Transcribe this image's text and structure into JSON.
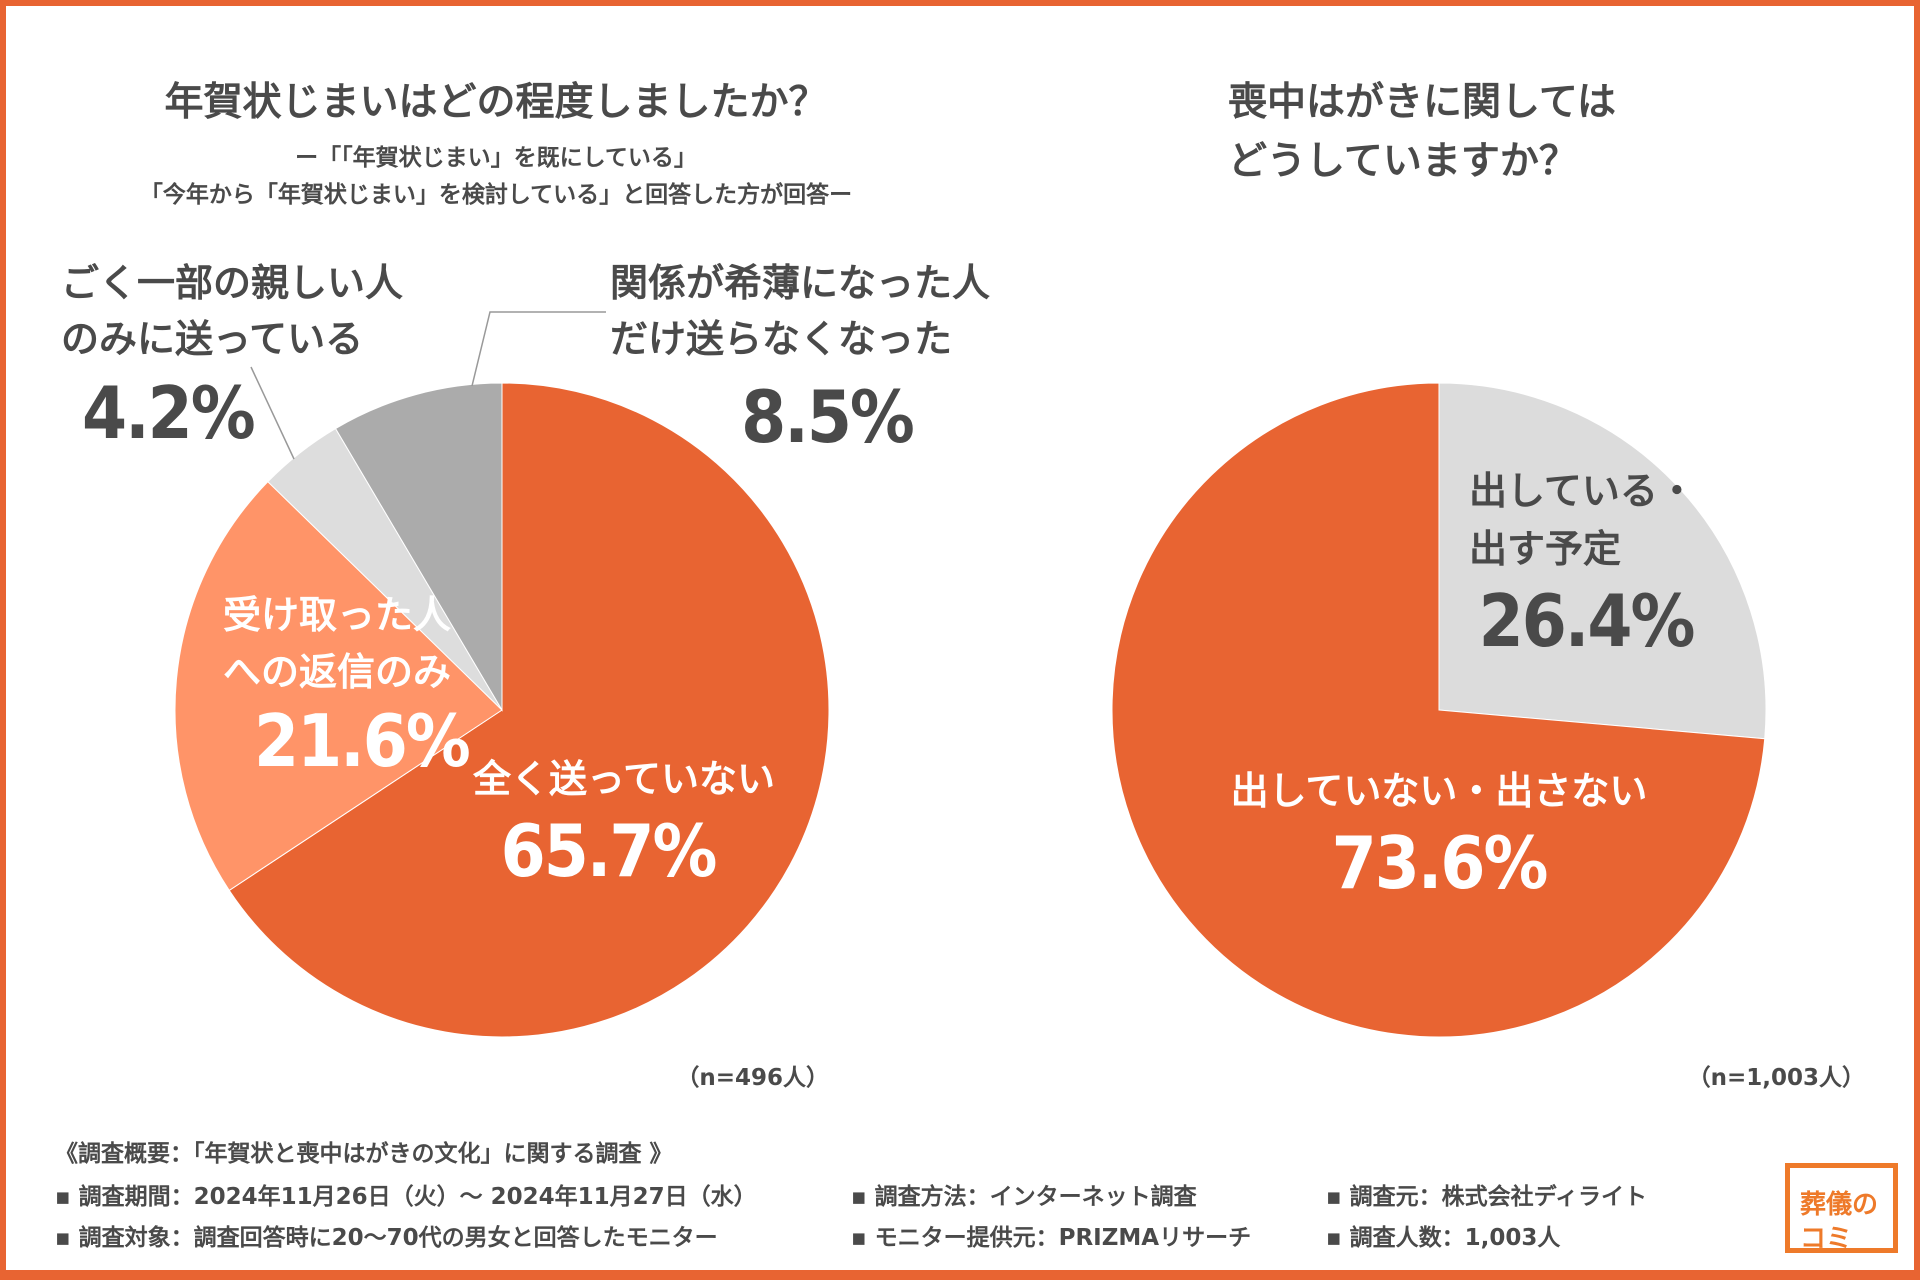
{
  "chart_data": [
    {
      "type": "pie",
      "title": "年賀状じまいはどの程度しましたか？",
      "subtitle": [
        "ー「「年賀状じまい」を既にしている」",
        "「今年から「年賀状じまい」を検討している」と回答した方が回答ー"
      ],
      "slices": [
        {
          "label": "全く送っていない",
          "value": 65.7,
          "display": "65.7%",
          "color": "#E86432"
        },
        {
          "label": "受け取った人への返信のみ",
          "label_lines": [
            "受け取った人",
            "への返信のみ"
          ],
          "value": 21.6,
          "display": "21.6%",
          "color": "#FF9468"
        },
        {
          "label": "ごく一部の親しい人のみに送っている",
          "label_lines": [
            "ごく一部の親しい人",
            "のみに送っている"
          ],
          "value": 4.2,
          "display": "4.2%",
          "color": "#DDDDDD"
        },
        {
          "label": "関係が希薄になった人だけ送らなくなった",
          "label_lines": [
            "関係が希薄になった人",
            "だけ送らなくなった"
          ],
          "value": 8.5,
          "display": "8.5%",
          "color": "#ABABAB"
        }
      ],
      "n": "（n=496人）"
    },
    {
      "type": "pie",
      "title_lines": [
        "喪中はがきに関しては",
        "どうしていますか？"
      ],
      "slices": [
        {
          "label": "出している・出す予定",
          "label_lines": [
            "出している・",
            "出す予定"
          ],
          "value": 26.4,
          "display": "26.4%",
          "color": "#DCDCDC"
        },
        {
          "label": "出していない・出さない",
          "value": 73.6,
          "display": "73.6%",
          "color": "#E86432"
        }
      ],
      "n": "（n=1,003人）"
    }
  ],
  "footer": {
    "heading": "《調査概要：「年賀状と喪中はがきの文化」に関する調査 》",
    "items": [
      "▪ 調査期間：2024年11月26日（火）～ 2024年11月27日（水）",
      "▪ 調査方法：インターネット調査",
      "▪ 調査元：株式会社ディライト",
      "▪ 調査対象：調査回答時に20～70代の男女と回答したモニター",
      "▪ モニター提供元：PRIZMAリサーチ",
      "▪ 調査人数：1,003人"
    ]
  },
  "logo": {
    "line1": "葬儀の",
    "line2": "コミ",
    "color": "#EE7A2A"
  },
  "colors": {
    "frame": "#E86432"
  }
}
